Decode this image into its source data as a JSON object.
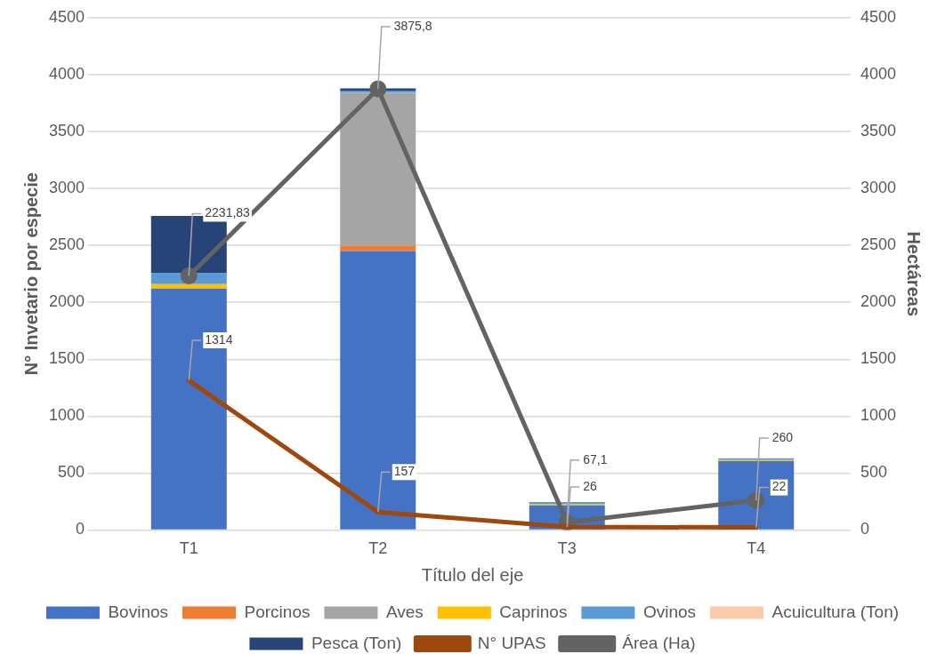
{
  "chart_data": {
    "type": "bar",
    "stacked": true,
    "xlabel": "Título del eje",
    "ylabel": "N° Invetario por especie",
    "y2label": "Hectáreas",
    "categories": [
      "T1",
      "T2",
      "T3",
      "T4"
    ],
    "series": [
      {
        "name": "Bovinos",
        "color": "#4472c4",
        "values": [
          2120,
          2450,
          215,
          605
        ]
      },
      {
        "name": "Porcinos",
        "color": "#ed7d31",
        "values": [
          0,
          50,
          0,
          0
        ]
      },
      {
        "name": "Aves",
        "color": "#a5a5a5",
        "values": [
          0,
          1340,
          0,
          0
        ]
      },
      {
        "name": "Caprinos",
        "color": "#ffc000",
        "values": [
          40,
          0,
          10,
          10
        ]
      },
      {
        "name": "Ovinos",
        "color": "#5b9bd5",
        "values": [
          100,
          20,
          20,
          15
        ]
      },
      {
        "name": "Acuicultura (Ton)",
        "color": "#f8cbad",
        "values": [
          0,
          0,
          0,
          0
        ]
      },
      {
        "name": "Pesca (Ton)",
        "color": "#264478",
        "values": [
          500,
          20,
          0,
          0
        ]
      },
      {
        "name": "N° UPAS",
        "type": "line",
        "color": "#9e480e",
        "marker": "none",
        "values": [
          1314,
          157,
          26,
          22
        ],
        "value_labels": [
          "1314",
          "157",
          "26",
          "22"
        ]
      },
      {
        "name": "Área (Ha)",
        "type": "line",
        "axis": "y2",
        "color": "#636363",
        "marker": "circle",
        "values": [
          2231.83,
          3875.8,
          67.1,
          260
        ],
        "value_labels": [
          "2231,83",
          "3875,8",
          "67,1",
          "260"
        ]
      }
    ],
    "ylim": [
      0,
      4500
    ],
    "yticks": [
      0,
      500,
      1000,
      1500,
      2000,
      2500,
      3000,
      3500,
      4000,
      4500
    ],
    "y2lim": [
      0,
      4500
    ],
    "y2ticks": [
      0,
      500,
      1000,
      1500,
      2000,
      2500,
      3000,
      3500,
      4000,
      4500
    ],
    "grid": "y",
    "legend": "bottom"
  }
}
